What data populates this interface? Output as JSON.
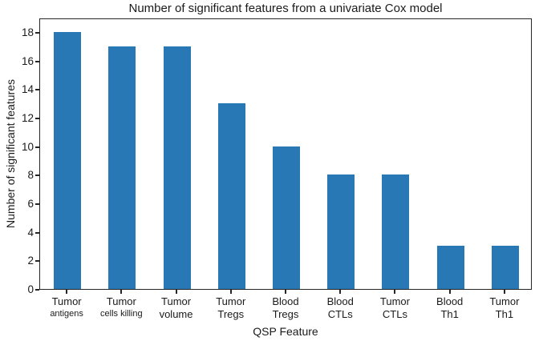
{
  "chart_data": {
    "type": "bar",
    "title": "Number of significant features from a univariate Cox model",
    "xlabel": "QSP Feature",
    "ylabel": "Number of significant features",
    "categories": [
      {
        "line1": "Tumor",
        "line2": "antigens"
      },
      {
        "line1": "Tumor",
        "line2": "cells killing"
      },
      {
        "line1": "Tumor",
        "line2": "volume"
      },
      {
        "line1": "Tumor",
        "line2": "Tregs"
      },
      {
        "line1": "Blood",
        "line2": "Tregs"
      },
      {
        "line1": "Blood",
        "line2": "CTLs"
      },
      {
        "line1": "Tumor",
        "line2": "CTLs"
      },
      {
        "line1": "Blood",
        "line2": "Th1"
      },
      {
        "line1": "Tumor",
        "line2": "Th1"
      }
    ],
    "values": [
      18,
      17,
      17,
      13,
      10,
      8,
      8,
      3,
      3
    ],
    "ylim": [
      0,
      19
    ],
    "yticks": [
      0,
      2,
      4,
      6,
      8,
      10,
      12,
      14,
      16,
      18
    ],
    "bar_color": "#2878b5",
    "axis_color": "#262626",
    "bar_rel_width": 0.5,
    "grid": false,
    "legend": "none"
  }
}
